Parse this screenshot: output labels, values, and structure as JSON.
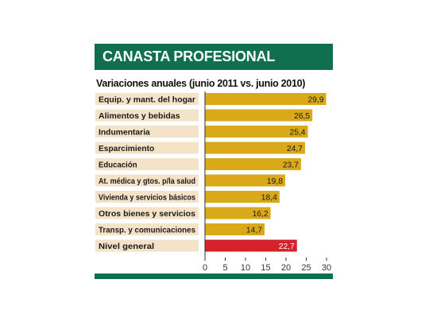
{
  "chart_data": {
    "type": "bar",
    "orientation": "horizontal",
    "title": "CANASTA PROFESIONAL",
    "subtitle": "Variaciones anuales (junio 2011 vs. junio 2010)",
    "categories": [
      "Equip. y mant. del hogar",
      "Alimentos y bebidas",
      "Indumentaria",
      "Esparcimiento",
      "Educación",
      "At. médica y gtos. p/la salud",
      "Vivienda y servicios básicos",
      "Otros bienes y servicios",
      "Transp. y comunicaciones",
      "Nivel general"
    ],
    "values": [
      29.9,
      26.5,
      25.4,
      24.7,
      23.7,
      19.8,
      18.4,
      16.2,
      14.7,
      22.7
    ],
    "value_labels": [
      "29,9",
      "26,5",
      "25,4",
      "24,7",
      "23,7",
      "19,8",
      "18,4",
      "16,2",
      "14,7",
      "22,7"
    ],
    "highlight_index": 9,
    "xlim": [
      0,
      30
    ],
    "x_ticks": [
      "0",
      "5",
      "10",
      "15",
      "20",
      "25",
      "30"
    ],
    "grid": false,
    "colors": {
      "bar": "#d9a91a",
      "highlight_bar": "#d6222a",
      "label_bg": "#f4e3c8",
      "header_bg": "#0f6f4f"
    }
  }
}
